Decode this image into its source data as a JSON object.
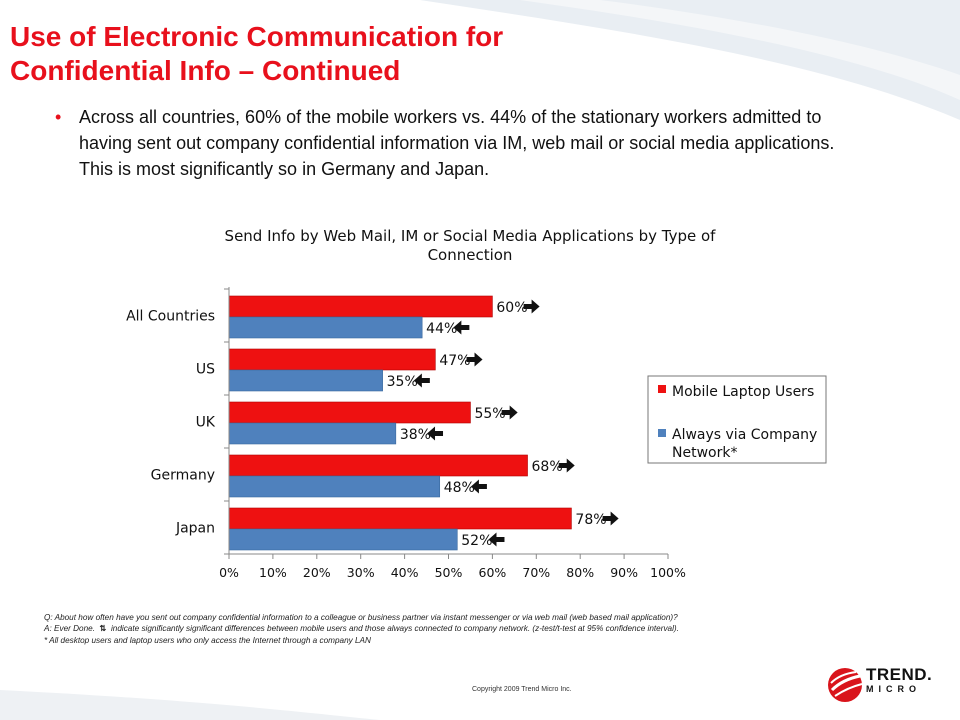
{
  "slide": {
    "title_line1": "Use of Electronic Communication for",
    "title_line2": "Confidential Info – Continued",
    "bullet": "Across all countries, 60% of the mobile workers vs. 44% of the stationary workers admitted to having sent out company confidential information via IM, web mail or social media applications.  This is most significantly so in Germany and Japan."
  },
  "chart_data": {
    "type": "bar",
    "orientation": "horizontal",
    "title_line1": "Send Info by Web Mail, IM or Social Media Applications by Type of",
    "title_line2": "Connection",
    "categories": [
      "All Countries",
      "US",
      "UK",
      "Germany",
      "Japan"
    ],
    "series": [
      {
        "name": "Mobile Laptop Users",
        "color": "#ee1111",
        "values": [
          60,
          47,
          55,
          68,
          78
        ],
        "labels": [
          "60%",
          "47%",
          "55%",
          "68%",
          "78%"
        ],
        "arrow": "right-arrow-icon"
      },
      {
        "name": "Always via Company Network*",
        "legend_line1": "Always via Company",
        "legend_line2": "Network*",
        "color": "#4f81bd",
        "values": [
          44,
          35,
          38,
          48,
          52
        ],
        "labels": [
          "44%",
          "35%",
          "38%",
          "48%",
          "52%"
        ],
        "arrow": "left-arrow-icon"
      }
    ],
    "x_ticks": [
      "0%",
      "10%",
      "20%",
      "30%",
      "40%",
      "50%",
      "60%",
      "70%",
      "80%",
      "90%",
      "100%"
    ],
    "xlim": [
      0,
      100
    ],
    "grid": false,
    "legend_position": "right"
  },
  "footnote": {
    "q": "Q: About how often have you sent out company confidential information to a colleague or business partner via instant messenger or via web mail (web based mail application)?",
    "a_prefix": "A: Ever Done.",
    "a_rest": "indicate significantly significant differences between mobile users and those always connected to company network.  (z-test/t-test at 95% confidence interval).",
    "note": "* All desktop users and laptop users who only access the Internet through a company LAN"
  },
  "copyright": "Copyright 2009   Trend Micro Inc.",
  "logo": {
    "line1": "TREND.",
    "line2": "MICRO"
  },
  "colors": {
    "title": "#e8101c",
    "logo_red": "#d9141b"
  }
}
